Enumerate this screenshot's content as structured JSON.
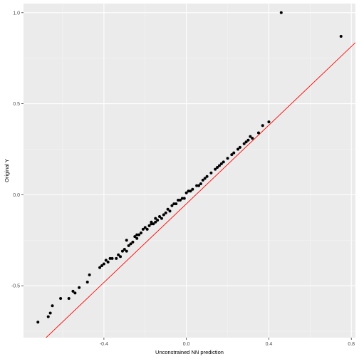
{
  "chart_data": {
    "type": "scatter",
    "title": "",
    "xlabel": "Unconstrained NN prediction",
    "ylabel": "Original Y",
    "xlim": [
      -0.79,
      0.82
    ],
    "ylim": [
      -0.785,
      1.05
    ],
    "x_ticks": [
      -0.4,
      0.0,
      0.4,
      0.8
    ],
    "x_tick_labels": [
      "-0.4",
      "0.0",
      "0.4",
      "0.8"
    ],
    "y_ticks": [
      -0.5,
      0.0,
      0.5,
      1.0
    ],
    "y_tick_labels": [
      "-0.5",
      "0.0",
      "0.5",
      "1.0"
    ],
    "grid": true,
    "reference_line": {
      "slope": 1.08,
      "intercept": -0.05,
      "color": "#ff0000"
    },
    "colors": {
      "panel": "#ebebeb",
      "grid_major": "#ffffff",
      "grid_minor": "#f4f4f4",
      "point": "#000000"
    },
    "points": [
      {
        "x": -0.72,
        "y": -0.7
      },
      {
        "x": -0.67,
        "y": -0.67
      },
      {
        "x": -0.66,
        "y": -0.65
      },
      {
        "x": -0.65,
        "y": -0.61
      },
      {
        "x": -0.61,
        "y": -0.57
      },
      {
        "x": -0.57,
        "y": -0.57
      },
      {
        "x": -0.55,
        "y": -0.53
      },
      {
        "x": -0.54,
        "y": -0.54
      },
      {
        "x": -0.52,
        "y": -0.51
      },
      {
        "x": -0.48,
        "y": -0.48
      },
      {
        "x": -0.47,
        "y": -0.44
      },
      {
        "x": -0.42,
        "y": -0.4
      },
      {
        "x": -0.41,
        "y": -0.39
      },
      {
        "x": -0.4,
        "y": -0.38
      },
      {
        "x": -0.39,
        "y": -0.36
      },
      {
        "x": -0.38,
        "y": -0.37
      },
      {
        "x": -0.37,
        "y": -0.35
      },
      {
        "x": -0.36,
        "y": -0.35
      },
      {
        "x": -0.34,
        "y": -0.35
      },
      {
        "x": -0.33,
        "y": -0.33
      },
      {
        "x": -0.32,
        "y": -0.34
      },
      {
        "x": -0.31,
        "y": -0.31
      },
      {
        "x": -0.3,
        "y": -0.3
      },
      {
        "x": -0.29,
        "y": -0.25
      },
      {
        "x": -0.29,
        "y": -0.31
      },
      {
        "x": -0.28,
        "y": -0.28
      },
      {
        "x": -0.27,
        "y": -0.27
      },
      {
        "x": -0.26,
        "y": -0.26
      },
      {
        "x": -0.25,
        "y": -0.23
      },
      {
        "x": -0.24,
        "y": -0.24
      },
      {
        "x": -0.24,
        "y": -0.22
      },
      {
        "x": -0.23,
        "y": -0.22
      },
      {
        "x": -0.22,
        "y": -0.21
      },
      {
        "x": -0.21,
        "y": -0.19
      },
      {
        "x": -0.2,
        "y": -0.18
      },
      {
        "x": -0.19,
        "y": -0.19
      },
      {
        "x": -0.18,
        "y": -0.17
      },
      {
        "x": -0.17,
        "y": -0.16
      },
      {
        "x": -0.17,
        "y": -0.15
      },
      {
        "x": -0.16,
        "y": -0.16
      },
      {
        "x": -0.15,
        "y": -0.13
      },
      {
        "x": -0.15,
        "y": -0.15
      },
      {
        "x": -0.14,
        "y": -0.14
      },
      {
        "x": -0.13,
        "y": -0.12
      },
      {
        "x": -0.12,
        "y": -0.13
      },
      {
        "x": -0.11,
        "y": -0.11
      },
      {
        "x": -0.1,
        "y": -0.1
      },
      {
        "x": -0.09,
        "y": -0.08
      },
      {
        "x": -0.08,
        "y": -0.09
      },
      {
        "x": -0.07,
        "y": -0.06
      },
      {
        "x": -0.06,
        "y": -0.05
      },
      {
        "x": -0.05,
        "y": -0.05
      },
      {
        "x": -0.04,
        "y": -0.03
      },
      {
        "x": -0.03,
        "y": -0.03
      },
      {
        "x": -0.02,
        "y": -0.02
      },
      {
        "x": -0.01,
        "y": -0.02
      },
      {
        "x": 0.0,
        "y": 0.01
      },
      {
        "x": 0.01,
        "y": 0.02
      },
      {
        "x": 0.02,
        "y": 0.02
      },
      {
        "x": 0.03,
        "y": 0.03
      },
      {
        "x": 0.05,
        "y": 0.05
      },
      {
        "x": 0.06,
        "y": 0.05
      },
      {
        "x": 0.07,
        "y": 0.06
      },
      {
        "x": 0.08,
        "y": 0.08
      },
      {
        "x": 0.09,
        "y": 0.09
      },
      {
        "x": 0.1,
        "y": 0.1
      },
      {
        "x": 0.12,
        "y": 0.12
      },
      {
        "x": 0.14,
        "y": 0.14
      },
      {
        "x": 0.15,
        "y": 0.15
      },
      {
        "x": 0.16,
        "y": 0.16
      },
      {
        "x": 0.17,
        "y": 0.17
      },
      {
        "x": 0.18,
        "y": 0.18
      },
      {
        "x": 0.2,
        "y": 0.2
      },
      {
        "x": 0.22,
        "y": 0.22
      },
      {
        "x": 0.23,
        "y": 0.23
      },
      {
        "x": 0.25,
        "y": 0.25
      },
      {
        "x": 0.26,
        "y": 0.26
      },
      {
        "x": 0.28,
        "y": 0.28
      },
      {
        "x": 0.29,
        "y": 0.29
      },
      {
        "x": 0.3,
        "y": 0.3
      },
      {
        "x": 0.31,
        "y": 0.32
      },
      {
        "x": 0.32,
        "y": 0.31
      },
      {
        "x": 0.35,
        "y": 0.34
      },
      {
        "x": 0.37,
        "y": 0.38
      },
      {
        "x": 0.4,
        "y": 0.4
      },
      {
        "x": 0.46,
        "y": 1.0
      },
      {
        "x": 0.75,
        "y": 0.87
      }
    ]
  }
}
